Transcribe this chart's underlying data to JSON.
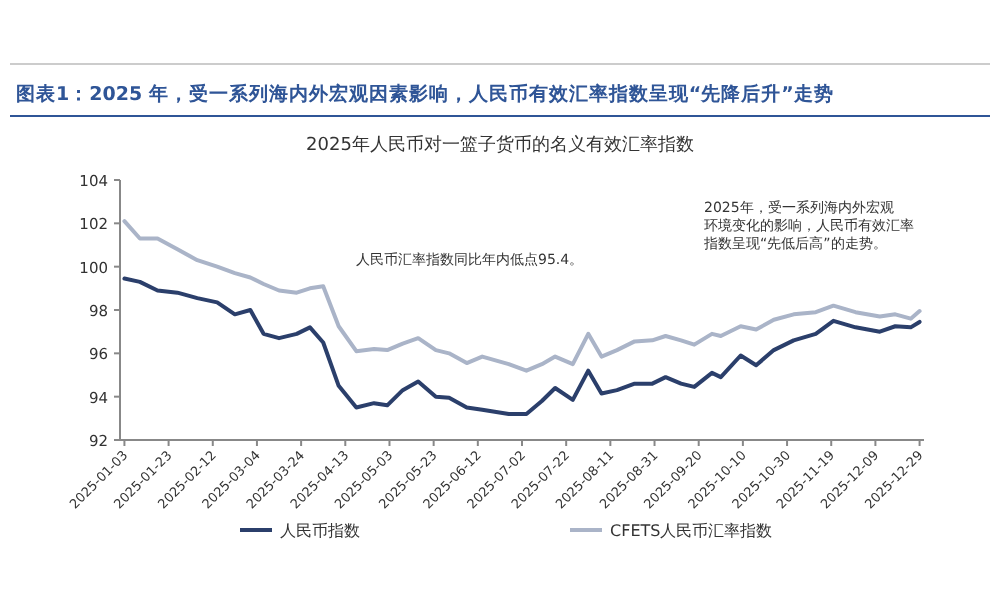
{
  "chart_data": {
    "type": "line",
    "title": "图表1：2025 年，受一系列海内外宏观因素影响，人民币有效汇率指数呈现“先降后升”走势",
    "subtitle": "2025年人民币对一篮子货币的名义有效汇率指数",
    "x": [
      "2025-01-03",
      "2025-01-10",
      "2025-01-18",
      "2025-01-27",
      "2025-02-05",
      "2025-02-14",
      "2025-02-22",
      "2025-03-01",
      "2025-03-07",
      "2025-03-14",
      "2025-03-22",
      "2025-03-28",
      "2025-04-03",
      "2025-04-10",
      "2025-04-18",
      "2025-04-26",
      "2025-05-02",
      "2025-05-09",
      "2025-05-16",
      "2025-05-24",
      "2025-05-30",
      "2025-06-07",
      "2025-06-14",
      "2025-06-26",
      "2025-07-04",
      "2025-07-11",
      "2025-07-17",
      "2025-07-25",
      "2025-08-01",
      "2025-08-07",
      "2025-08-14",
      "2025-08-22",
      "2025-08-30",
      "2025-09-05",
      "2025-09-12",
      "2025-09-18",
      "2025-09-26",
      "2025-09-30",
      "2025-10-09",
      "2025-10-16",
      "2025-10-24",
      "2025-11-02",
      "2025-11-12",
      "2025-11-20",
      "2025-11-30",
      "2025-12-11",
      "2025-12-18",
      "2025-12-25",
      "2025-12-29"
    ],
    "series": [
      {
        "name": "人民币指数",
        "color": "#2b3f6b",
        "values": [
          99.45,
          99.3,
          98.9,
          98.8,
          98.55,
          98.35,
          97.8,
          98.0,
          96.9,
          96.7,
          96.9,
          97.2,
          96.5,
          94.5,
          93.5,
          93.7,
          93.6,
          94.3,
          94.7,
          94.0,
          93.95,
          93.5,
          93.4,
          93.2,
          93.2,
          93.8,
          94.4,
          93.85,
          95.2,
          94.15,
          94.3,
          94.6,
          94.6,
          94.9,
          94.6,
          94.45,
          95.1,
          94.9,
          95.9,
          95.45,
          96.15,
          96.6,
          96.9,
          97.5,
          97.2,
          97.0,
          97.25,
          97.2,
          97.45
        ]
      },
      {
        "name": "CFETS人民币汇率指数",
        "color": "#aab4c8",
        "values": [
          102.1,
          101.3,
          101.3,
          100.8,
          100.3,
          100.0,
          99.7,
          99.5,
          99.2,
          98.9,
          98.8,
          99.0,
          99.1,
          97.25,
          96.1,
          96.2,
          96.15,
          96.45,
          96.7,
          96.15,
          96.0,
          95.55,
          95.85,
          95.5,
          95.2,
          95.5,
          95.85,
          95.5,
          96.9,
          95.85,
          96.15,
          96.55,
          96.6,
          96.8,
          96.6,
          96.4,
          96.9,
          96.8,
          97.25,
          97.1,
          97.55,
          97.8,
          97.9,
          98.2,
          97.9,
          97.7,
          97.8,
          97.6,
          97.95
        ]
      }
    ],
    "xlim": [
      "2025-01-01",
      "2025-12-31"
    ],
    "xticks": [
      "2025-01-03",
      "2025-01-23",
      "2025-02-12",
      "2025-03-04",
      "2025-03-24",
      "2025-04-13",
      "2025-05-03",
      "2025-05-23",
      "2025-06-12",
      "2025-07-02",
      "2025-07-22",
      "2025-08-11",
      "2025-08-31",
      "2025-09-20",
      "2025-10-10",
      "2025-10-30",
      "2025-11-19",
      "2025-12-09",
      "2025-12-29"
    ],
    "ylim": [
      92,
      104
    ],
    "yticks": [
      92,
      94,
      96,
      98,
      100,
      102,
      104
    ],
    "annotations": [
      "2025年，受一系列海内外宏观环境变化的影响，人民币有效汇率指数呈现“先低后高”的走势。",
      "人民币汇率指数同比年内低点95.4。"
    ],
    "grid": false,
    "legend": "bottom",
    "marker": "none",
    "line_style": "solid"
  }
}
